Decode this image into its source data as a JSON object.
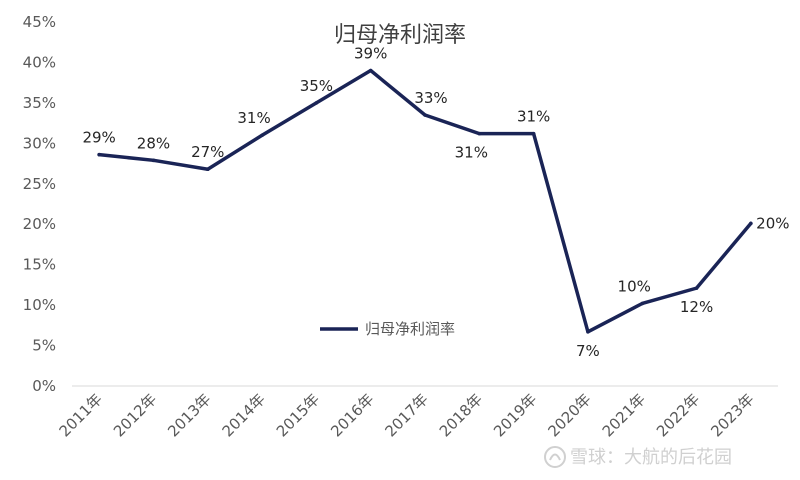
{
  "chart_data": {
    "type": "line",
    "title": "归母净利润率",
    "xlabel": "",
    "ylabel": "",
    "categories": [
      "2011年",
      "2012年",
      "2013年",
      "2014年",
      "2015年",
      "2016年",
      "2017年",
      "2018年",
      "2019年",
      "2020年",
      "2021年",
      "2022年",
      "2023年"
    ],
    "series": [
      {
        "name": "归母净利润率",
        "values": [
          28.6,
          27.9,
          26.8,
          31.0,
          35.0,
          39.0,
          33.5,
          31.2,
          31.2,
          6.7,
          10.2,
          12.1,
          20.1
        ],
        "labels": [
          "29%",
          "28%",
          "27%",
          "31%",
          "35%",
          "39%",
          "33%",
          "31%",
          "31%",
          "7%",
          "10%",
          "12%",
          "20%"
        ],
        "color": "#1a2456"
      }
    ],
    "ylim": [
      0,
      45
    ],
    "yticks": [
      0,
      5,
      10,
      15,
      20,
      25,
      30,
      35,
      40,
      45
    ],
    "ytick_labels": [
      "0%",
      "5%",
      "10%",
      "15%",
      "20%",
      "25%",
      "30%",
      "35%",
      "40%",
      "45%"
    ],
    "grid": false,
    "legend": "center"
  },
  "watermark": "雪球：大航的后花园"
}
